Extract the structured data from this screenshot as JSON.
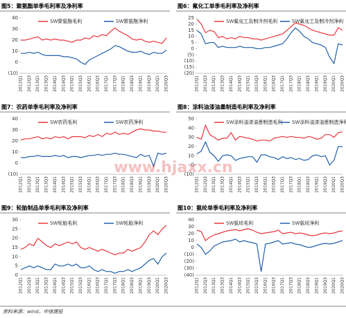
{
  "chart_data": [
    {
      "type": "line",
      "title": "图5：聚氨酯单季毛利率及净利率",
      "categories": [
        "2012Q1",
        null,
        "2012Q3",
        null,
        "2013Q1",
        null,
        "2013Q3",
        null,
        "2014Q1",
        null,
        "2014Q3",
        null,
        "2015Q1",
        null,
        "2015Q3",
        null,
        "2016Q1",
        null,
        "2016Q3",
        null,
        "2017Q1",
        null,
        "2017Q3",
        null,
        "2018Q1",
        null,
        "2018Q3",
        null,
        "2019Q1",
        null,
        "2019Q3",
        null,
        "2020Q1",
        null,
        "2020Q3"
      ],
      "series": [
        {
          "name": "SW聚氨酯毛利",
          "color": "#e8343b",
          "values": [
            20,
            20,
            21,
            22,
            23,
            20,
            21,
            20,
            21,
            20,
            20,
            19,
            18,
            20,
            20,
            22,
            21,
            24,
            23,
            25,
            24,
            28,
            31,
            28,
            26,
            24,
            21,
            20,
            21,
            19,
            18,
            19,
            18,
            17,
            22
          ]
        },
        {
          "name": "SW聚氨酯净利",
          "color": "#1f5fa8",
          "values": [
            8,
            8,
            9,
            8,
            9,
            7,
            6,
            6,
            6,
            6,
            5,
            5,
            4,
            3,
            0,
            -2,
            2,
            4,
            6,
            8,
            10,
            12,
            15,
            14,
            12,
            10,
            9,
            9,
            10,
            8,
            7,
            9,
            8,
            8,
            11
          ]
        }
      ],
      "ylim": [
        -10,
        40
      ],
      "yticks": [
        {
          "value": -10,
          "label": "(10)"
        },
        0,
        10,
        20,
        30,
        40
      ]
    },
    {
      "type": "line",
      "title": "图6：氟化工单季毛利率及净利率",
      "categories": [
        "2012Q1",
        null,
        "2012Q3",
        null,
        "2013Q1",
        null,
        "2013Q3",
        null,
        "2014Q1",
        null,
        "2014Q3",
        null,
        "2015Q1",
        null,
        "2015Q3",
        null,
        "2016Q1",
        null,
        "2016Q3",
        null,
        "2017Q1",
        null,
        "2017Q3",
        null,
        "2018Q1",
        null,
        "2018Q3",
        null,
        "2019Q1",
        null,
        "2019Q3",
        null,
        "2020Q1",
        null,
        "2020Q3"
      ],
      "series": [
        {
          "name": "SW氟化工及制冷剂毛利",
          "color": "#e8343b",
          "values": [
            24,
            20,
            13,
            15,
            14,
            9,
            10,
            8,
            9,
            8,
            10,
            9,
            9,
            8,
            8,
            7,
            8,
            9,
            10,
            11,
            12,
            15,
            18,
            21,
            20,
            19,
            17,
            15,
            14,
            13,
            12,
            11,
            11,
            17,
            15
          ]
        },
        {
          "name": "SW氟化工及制冷剂净利",
          "color": "#1f5fa8",
          "values": [
            15,
            12,
            4,
            5,
            5,
            1,
            2,
            1,
            1,
            1,
            2,
            1,
            1,
            1,
            0,
            0,
            1,
            1,
            2,
            3,
            4,
            8,
            13,
            17,
            14,
            10,
            8,
            5,
            4,
            3,
            1,
            -7,
            -12,
            4,
            3
          ]
        }
      ],
      "ylim": [
        -20,
        25
      ],
      "yticks": [
        {
          "value": -20,
          "label": "(20)"
        },
        {
          "value": -15,
          "label": "(15)"
        },
        {
          "value": -10,
          "label": "(10)"
        },
        {
          "value": -5,
          "label": "(5)"
        },
        0,
        5,
        10,
        15,
        20,
        25
      ]
    },
    {
      "type": "line",
      "title": "图7：农药单季毛利率及净利率",
      "categories": [
        "2012Q1",
        null,
        "2012Q3",
        null,
        "2013Q1",
        null,
        "2013Q3",
        null,
        "2014Q1",
        null,
        "2014Q3",
        null,
        "2015Q1",
        null,
        "2015Q3",
        null,
        "2016Q1",
        null,
        "2016Q3",
        null,
        "2017Q1",
        null,
        "2017Q3",
        null,
        "2018Q1",
        null,
        "2018Q3",
        null,
        "2019Q1",
        null,
        "2019Q3",
        null,
        "2020Q1",
        null,
        "2020Q3"
      ],
      "series": [
        {
          "name": "SW农药毛利",
          "color": "#e8343b",
          "values": [
            21,
            22,
            22,
            23,
            24,
            22,
            23,
            22,
            24,
            23,
            24,
            22,
            24,
            24,
            24,
            23,
            25,
            24,
            26,
            24,
            27,
            26,
            28,
            26,
            27,
            26,
            28,
            30,
            31,
            30,
            30,
            29,
            29,
            28,
            28
          ]
        },
        {
          "name": "SW农药净利",
          "color": "#1f5fa8",
          "values": [
            5,
            5,
            6,
            6,
            7,
            6,
            6,
            6,
            7,
            6,
            7,
            5,
            6,
            6,
            5,
            6,
            7,
            7,
            8,
            7,
            8,
            8,
            9,
            8,
            8,
            7,
            6,
            5,
            8,
            6,
            7,
            -3,
            9,
            8,
            9
          ]
        }
      ],
      "ylim": [
        -10,
        40
      ],
      "yticks": [
        {
          "value": -10,
          "label": "(10)"
        },
        0,
        10,
        20,
        30,
        40
      ]
    },
    {
      "type": "line",
      "title": "图8：涂料油漆油墨制造毛利率及净利率",
      "categories": [
        "2012Q1",
        null,
        "2012Q3",
        null,
        "2013Q1",
        null,
        "2013Q3",
        null,
        "2014Q1",
        null,
        "2014Q3",
        null,
        "2015Q1",
        null,
        "2015Q3",
        null,
        "2016Q1",
        null,
        "2016Q3",
        null,
        "2017Q1",
        null,
        "2017Q3",
        null,
        "2018Q1",
        null,
        "2018Q3",
        null,
        "2019Q1",
        null,
        "2019Q3",
        null,
        "2020Q1",
        null,
        "2020Q3"
      ],
      "series": [
        {
          "name": "SW涂料油漆油墨制造毛利",
          "color": "#e8343b",
          "values": [
            30,
            28,
            43,
            33,
            30,
            27,
            29,
            29,
            35,
            27,
            31,
            30,
            29,
            28,
            26,
            27,
            27,
            26,
            29,
            30,
            31,
            30,
            31,
            30,
            30,
            29,
            31,
            30,
            28,
            29,
            33,
            33,
            30,
            35,
            36
          ]
        },
        {
          "name": "SW涂料油漆油墨制造净利",
          "color": "#1f5fa8",
          "values": [
            12,
            15,
            25,
            14,
            10,
            4,
            10,
            11,
            10,
            5,
            7,
            8,
            9,
            9,
            3,
            11,
            11,
            9,
            8,
            6,
            9,
            7,
            8,
            6,
            7,
            5,
            6,
            10,
            11,
            9,
            10,
            0,
            5,
            20,
            20
          ]
        }
      ],
      "ylim": [
        -10,
        50
      ],
      "yticks": [
        {
          "value": -10,
          "label": "(10)"
        },
        0,
        10,
        20,
        30,
        40,
        50
      ]
    },
    {
      "type": "line",
      "title": "图9：轮胎制品单季毛利率及净利率",
      "categories": [
        "2012Q1",
        null,
        "2012Q3",
        null,
        "2013Q1",
        null,
        "2013Q3",
        null,
        "2014Q1",
        null,
        "2014Q3",
        null,
        "2015Q1",
        null,
        "2015Q3",
        null,
        "2016Q1",
        null,
        "2016Q3",
        null,
        "2017Q1",
        null,
        "2017Q3",
        null,
        "2018Q1",
        null,
        "2018Q3",
        null,
        "2019Q1",
        null,
        "2019Q3",
        null,
        "2020Q1",
        null,
        "2020Q3"
      ],
      "series": [
        {
          "name": "SW轮胎毛利",
          "color": "#e8343b",
          "values": [
            14,
            15,
            17,
            16,
            20,
            18,
            16,
            15,
            17,
            16,
            17,
            18,
            17,
            18,
            15,
            14,
            15,
            14,
            13,
            14,
            13,
            12,
            11,
            12,
            12,
            14,
            13,
            14,
            15,
            18,
            22,
            24,
            22,
            25,
            27
          ]
        },
        {
          "name": "SW轮胎净利",
          "color": "#1f5fa8",
          "values": [
            3,
            4,
            5,
            4,
            5,
            4,
            3,
            3,
            6,
            5,
            5,
            6,
            5,
            6,
            4,
            4,
            5,
            3,
            2,
            3,
            2,
            2,
            1,
            2,
            2,
            3,
            2,
            3,
            4,
            6,
            8,
            9,
            6,
            10,
            12
          ]
        }
      ],
      "ylim": [
        0,
        30
      ],
      "yticks": [
        0,
        5,
        10,
        15,
        20,
        25,
        30
      ]
    },
    {
      "type": "line",
      "title": "图10：氨纶单季毛利率及净利率",
      "categories": [
        "2012Q1",
        null,
        "2012Q3",
        null,
        "2013Q1",
        null,
        "2013Q3",
        null,
        "2014Q1",
        null,
        "2014Q3",
        null,
        "2015Q1",
        null,
        "2015Q3",
        null,
        "2016Q1",
        null,
        "2016Q3",
        null,
        "2017Q1",
        null,
        "2017Q3",
        null,
        "2018Q1",
        null,
        "2018Q3",
        null,
        "2019Q1",
        null,
        "2019Q3",
        null,
        "2020Q1",
        null,
        "2020Q3"
      ],
      "series": [
        {
          "name": "SW氨纶毛利",
          "color": "#e8343b",
          "values": [
            25,
            23,
            10,
            15,
            18,
            20,
            22,
            24,
            25,
            26,
            24,
            26,
            27,
            25,
            22,
            20,
            21,
            22,
            23,
            25,
            20,
            21,
            22,
            20,
            21,
            20,
            18,
            17,
            18,
            20,
            21,
            20,
            21,
            23,
            24
          ]
        },
        {
          "name": "SW氨纶净利",
          "color": "#1f5fa8",
          "values": [
            5,
            0,
            -10,
            -5,
            2,
            5,
            8,
            9,
            10,
            12,
            8,
            10,
            8,
            7,
            5,
            -35,
            5,
            6,
            8,
            10,
            5,
            6,
            7,
            5,
            4,
            2,
            0,
            1,
            3,
            5,
            6,
            5,
            6,
            8,
            10
          ]
        }
      ],
      "ylim": [
        -40,
        40
      ],
      "yticks": [
        {
          "value": -40,
          "label": "(40)"
        },
        {
          "value": -30,
          "label": "(30)"
        },
        {
          "value": -20,
          "label": "(20)"
        },
        {
          "value": -10,
          "label": "(10)"
        },
        0,
        10,
        20,
        30,
        40
      ]
    }
  ],
  "footer": "资料来源：wind，中信建投",
  "watermark": "www.hjaxx.cn"
}
